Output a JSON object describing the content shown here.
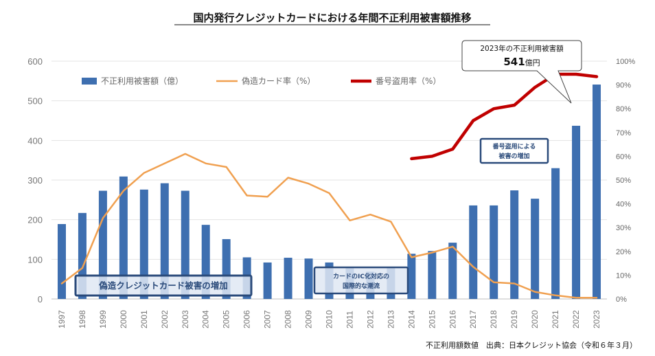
{
  "chart_data": {
    "type": "bar",
    "title": "国内発行クレジットカードにおける年間不正利用被害額推移",
    "categories": [
      "1997",
      "1998",
      "1999",
      "2000",
      "2001",
      "2002",
      "2003",
      "2004",
      "2005",
      "2006",
      "2007",
      "2008",
      "2009",
      "2010",
      "2011",
      "2012",
      "2013",
      "2014",
      "2015",
      "2016",
      "2017",
      "2018",
      "2019",
      "2020",
      "2021",
      "2022",
      "2023"
    ],
    "y_left": {
      "min": 0,
      "max": 600,
      "ticks": [
        "0",
        "100",
        "200",
        "300",
        "400",
        "500",
        "600"
      ]
    },
    "y_right": {
      "min": 0,
      "max": 100,
      "ticks": [
        "0%",
        "10%",
        "20%",
        "30%",
        "40%",
        "50%",
        "60%",
        "70%",
        "80%",
        "90%",
        "100%"
      ]
    },
    "series": [
      {
        "name": "不正利用被害額（億）",
        "type": "bar",
        "axis": "left",
        "color": "#3e6fb0",
        "values": [
          189,
          217,
          273,
          309,
          276,
          292,
          273,
          187,
          151,
          105,
          92,
          104,
          102,
          92,
          79,
          69,
          79,
          114,
          121,
          142,
          236,
          236,
          274,
          253,
          330,
          437,
          541
        ]
      },
      {
        "name": "偽造カード率（%）",
        "type": "line",
        "axis": "right",
        "color": "#f0a050",
        "values": [
          6.5,
          13,
          34,
          45.5,
          53,
          57,
          61,
          57,
          55.5,
          43.5,
          43,
          51,
          48.5,
          44.5,
          33,
          35.5,
          32.5,
          17.5,
          19.5,
          22,
          13.5,
          7,
          6.5,
          3,
          1.5,
          0.5,
          0.5
        ]
      },
      {
        "name": "番号盗用率（%）",
        "type": "line",
        "axis": "right",
        "color": "#c00000",
        "values": [
          null,
          null,
          null,
          null,
          null,
          null,
          null,
          null,
          null,
          null,
          null,
          null,
          null,
          null,
          null,
          null,
          null,
          59,
          60,
          63,
          75,
          80,
          81.5,
          89,
          94.5,
          94.5,
          93.5
        ]
      }
    ],
    "annotations": {
      "callout_label": "2023年の不正利用被害額",
      "callout_value": "541",
      "callout_unit": "億円",
      "box_counterfeit": "偽造クレジットカード被害の増加",
      "box_ic_line1": "カードのIC化対応の",
      "box_ic_line2": "国際的な潮流",
      "box_theft_line1": "番号盗用による",
      "box_theft_line2": "被害の増加"
    },
    "source": "不正利用額数値　出典：日本クレジット協会（令和６年３月）"
  }
}
